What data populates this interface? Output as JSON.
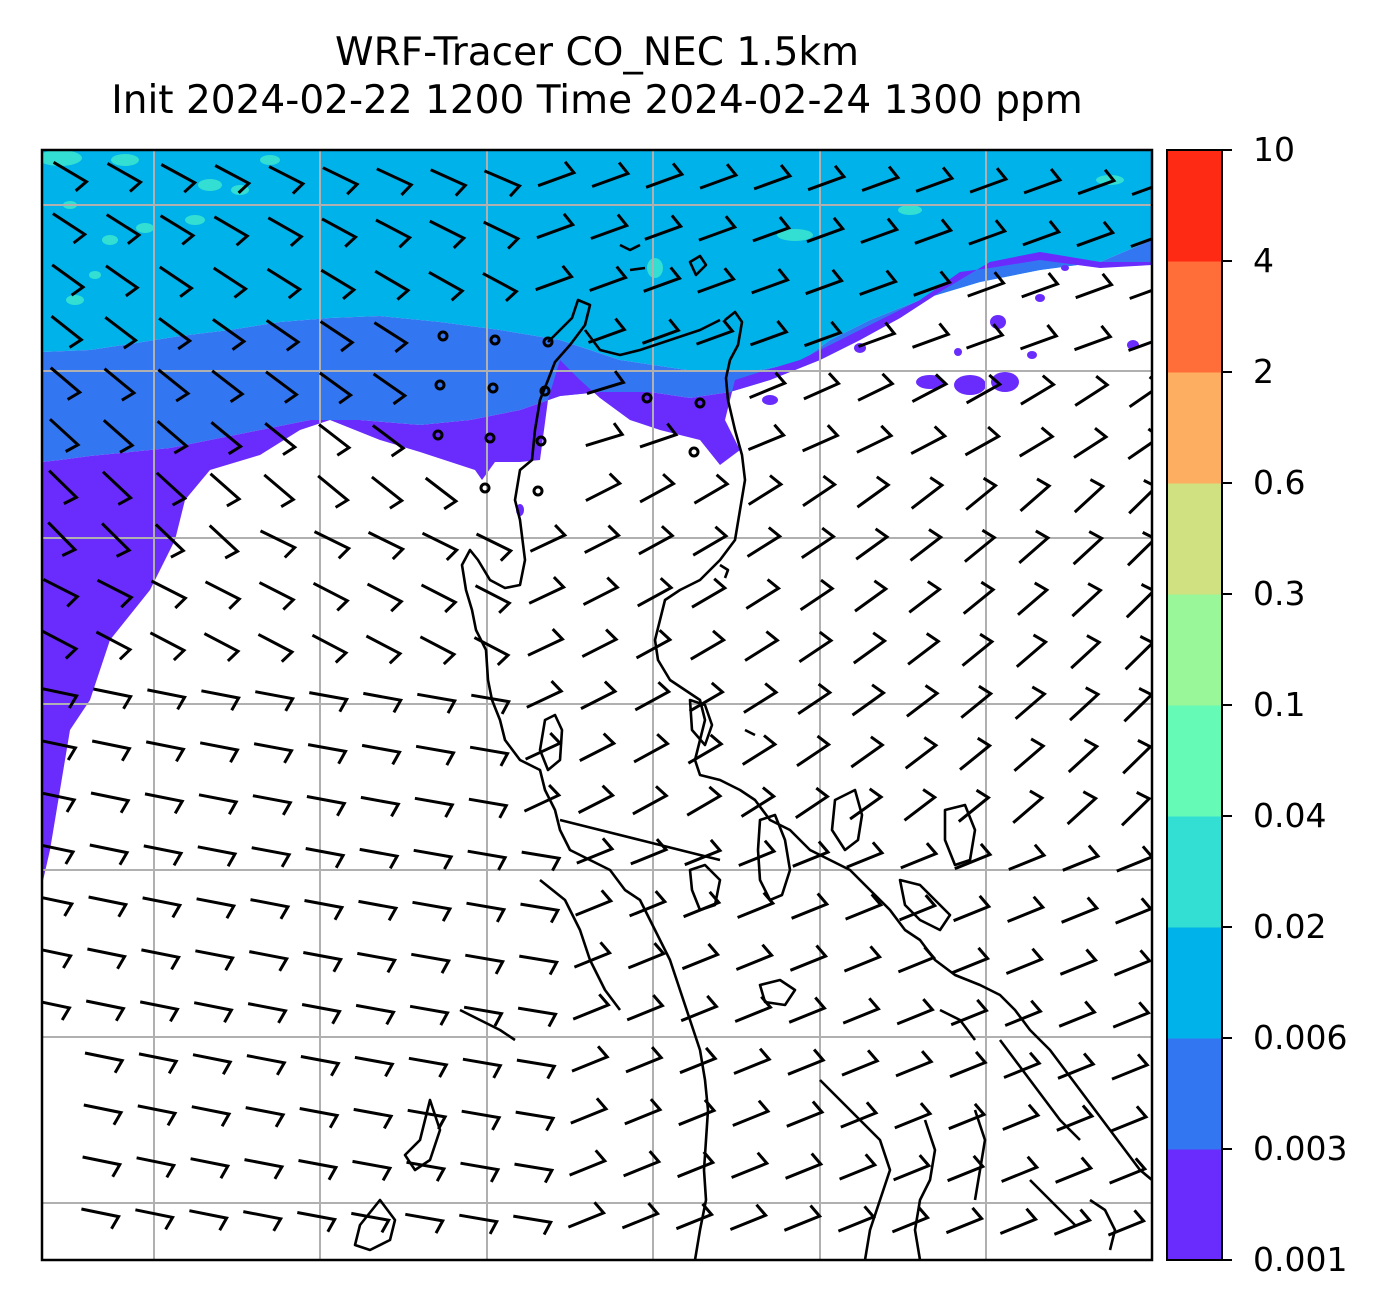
{
  "title": {
    "line1": "WRF-Tracer CO_NEC 1.5km",
    "line2": "Init 2024-02-22 1200 Time 2024-02-24 1300 ppm"
  },
  "colorbar": {
    "levels": [
      "0.001",
      "0.003",
      "0.006",
      "0.02",
      "0.04",
      "0.1",
      "0.3",
      "0.6",
      "2",
      "4",
      "10"
    ],
    "colors": [
      "#6a2cfc",
      "#3376f2",
      "#00b2ea",
      "#33dfd2",
      "#66fab7",
      "#99f699",
      "#cfe180",
      "#fdae61",
      "#ff6e38",
      "#ff2a14"
    ]
  },
  "map": {
    "background": "#ffffff",
    "coastline_color": "#000000",
    "grid_color": "#b0b0b0",
    "wind_barb_color": "#000000"
  }
}
